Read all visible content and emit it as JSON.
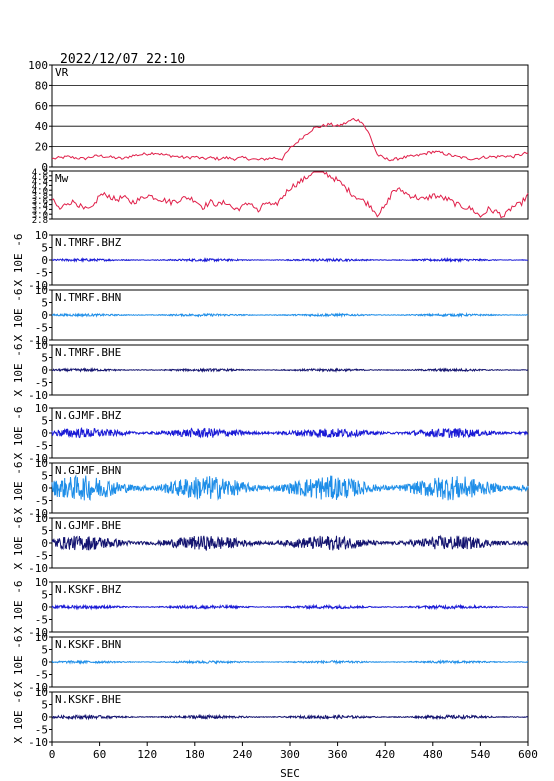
{
  "timestamp": "2022/12/07 22:10",
  "xlabel": "SEC",
  "y_axis_unit_label": "X 10E -6",
  "colors": {
    "vr_line": "#e0204a",
    "bhz": "#1a1ad6",
    "bhn": "#1e8ee8",
    "bhe": "#141470",
    "frame": "#000000"
  },
  "chart_data": [
    {
      "type": "line",
      "name": "vr-panel",
      "label": "VR",
      "ylim": [
        0,
        100
      ],
      "yticks": [
        "0",
        "20",
        "40",
        "60",
        "80",
        "100"
      ],
      "grid": true,
      "x": [
        0,
        10,
        20,
        30,
        40,
        50,
        60,
        70,
        80,
        90,
        100,
        110,
        120,
        130,
        140,
        150,
        160,
        170,
        180,
        190,
        200,
        210,
        220,
        230,
        240,
        250,
        260,
        270,
        280,
        290,
        300,
        310,
        320,
        330,
        340,
        350,
        360,
        370,
        380,
        390,
        400,
        410,
        420,
        430,
        440,
        450,
        460,
        470,
        480,
        490,
        500,
        510,
        520,
        530,
        540,
        550,
        560,
        570,
        580,
        590,
        600
      ],
      "values": [
        8,
        9,
        10,
        9,
        8,
        10,
        11,
        10,
        9,
        8,
        11,
        12,
        13,
        14,
        12,
        11,
        10,
        9,
        10,
        8,
        9,
        8,
        9,
        8,
        9,
        8,
        7,
        8,
        9,
        8,
        18,
        25,
        32,
        38,
        40,
        42,
        40,
        43,
        47,
        45,
        32,
        12,
        8,
        7,
        9,
        10,
        11,
        13,
        15,
        14,
        12,
        10,
        9,
        8,
        9,
        10,
        10,
        11,
        10,
        12,
        14
      ]
    },
    {
      "type": "line",
      "name": "mw-panel",
      "label": "Mw",
      "ylim": [
        2.8,
        4.8
      ],
      "yticks": [
        "2.8",
        "3.0",
        "3.2",
        "3.4",
        "3.6",
        "3.8",
        "4.0",
        "4.2",
        "4.4",
        "4.6",
        "4.8"
      ],
      "x": [
        0,
        10,
        20,
        30,
        40,
        50,
        60,
        70,
        80,
        90,
        100,
        110,
        120,
        130,
        140,
        150,
        160,
        170,
        180,
        190,
        200,
        210,
        220,
        230,
        240,
        250,
        260,
        270,
        280,
        290,
        300,
        310,
        320,
        330,
        340,
        350,
        360,
        370,
        380,
        390,
        400,
        410,
        420,
        430,
        440,
        450,
        460,
        470,
        480,
        490,
        500,
        510,
        520,
        530,
        540,
        550,
        560,
        570,
        580,
        590,
        600
      ],
      "values": [
        3.6,
        3.2,
        3.5,
        3.5,
        3.2,
        3.2,
        3.8,
        3.8,
        3.6,
        3.7,
        3.5,
        3.6,
        3.8,
        3.7,
        3.6,
        3.5,
        3.6,
        3.7,
        3.6,
        3.3,
        3.5,
        3.4,
        3.5,
        3.2,
        3.3,
        3.5,
        3.1,
        3.5,
        3.3,
        3.7,
        4.1,
        4.3,
        4.5,
        4.8,
        4.8,
        4.6,
        4.4,
        4.1,
        3.8,
        3.6,
        3.4,
        3.0,
        3.3,
        4.0,
        4.0,
        3.8,
        3.7,
        3.6,
        3.8,
        3.7,
        3.6,
        3.4,
        3.3,
        3.2,
        2.9,
        3.2,
        3.1,
        2.9,
        3.3,
        3.4,
        3.8
      ]
    },
    {
      "type": "line",
      "name": "trace-tmrf-bhz",
      "label": "N.TMRF.BHZ",
      "component": "bhz",
      "ylim": [
        -10,
        10
      ],
      "yticks": [
        "-10",
        "-5",
        "0",
        "5",
        "10"
      ],
      "amplitude": 0.5
    },
    {
      "type": "line",
      "name": "trace-tmrf-bhn",
      "label": "N.TMRF.BHN",
      "component": "bhn",
      "ylim": [
        -10,
        10
      ],
      "yticks": [
        "-10",
        "-5",
        "0",
        "5",
        "10"
      ],
      "amplitude": 0.5
    },
    {
      "type": "line",
      "name": "trace-tmrf-bhe",
      "label": "N.TMRF.BHE",
      "component": "bhe",
      "ylim": [
        -10,
        10
      ],
      "yticks": [
        "-10",
        "-5",
        "0",
        "5",
        "10"
      ],
      "amplitude": 0.5
    },
    {
      "type": "line",
      "name": "trace-gjmf-bhz",
      "label": "N.GJMF.BHZ",
      "component": "bhz",
      "ylim": [
        -10,
        10
      ],
      "yticks": [
        "-10",
        "-5",
        "0",
        "5",
        "10"
      ],
      "amplitude": 2
    },
    {
      "type": "line",
      "name": "trace-gjmf-bhn",
      "label": "N.GJMF.BHN",
      "component": "bhn",
      "ylim": [
        -10,
        10
      ],
      "yticks": [
        "-10",
        "-5",
        "0",
        "5",
        "10"
      ],
      "amplitude": 5
    },
    {
      "type": "line",
      "name": "trace-gjmf-bhe",
      "label": "N.GJMF.BHE",
      "component": "bhe",
      "ylim": [
        -10,
        10
      ],
      "yticks": [
        "-10",
        "-5",
        "0",
        "5",
        "10"
      ],
      "amplitude": 3
    },
    {
      "type": "line",
      "name": "trace-kskf-bhz",
      "label": "N.KSKF.BHZ",
      "component": "bhz",
      "ylim": [
        -10,
        10
      ],
      "yticks": [
        "-10",
        "-5",
        "0",
        "5",
        "10"
      ],
      "amplitude": 0.7
    },
    {
      "type": "line",
      "name": "trace-kskf-bhn",
      "label": "N.KSKF.BHN",
      "component": "bhn",
      "ylim": [
        -10,
        10
      ],
      "yticks": [
        "-10",
        "-5",
        "0",
        "5",
        "10"
      ],
      "amplitude": 0.5
    },
    {
      "type": "line",
      "name": "trace-kskf-bhe",
      "label": "N.KSKF.BHE",
      "component": "bhe",
      "ylim": [
        -10,
        10
      ],
      "yticks": [
        "-10",
        "-5",
        "0",
        "5",
        "10"
      ],
      "amplitude": 0.7
    }
  ],
  "x_axis": {
    "xlim": [
      0,
      600
    ],
    "ticks": [
      "0",
      "60",
      "120",
      "180",
      "240",
      "300",
      "360",
      "420",
      "480",
      "540",
      "600"
    ]
  }
}
